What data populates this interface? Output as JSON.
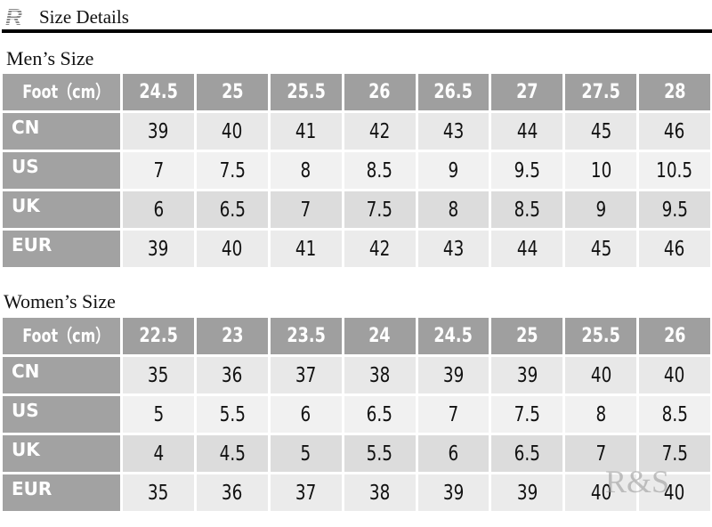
{
  "header": {
    "title": "Size Details",
    "logo_text": "R"
  },
  "men": {
    "title": "Men’s Size",
    "header_label": "Foot（cm）",
    "foot": [
      "24.5",
      "25",
      "25.5",
      "26",
      "26.5",
      "27",
      "27.5",
      "28"
    ],
    "rows": [
      {
        "label": "CN",
        "values": [
          "39",
          "40",
          "41",
          "42",
          "43",
          "44",
          "45",
          "46"
        ]
      },
      {
        "label": "US",
        "values": [
          "7",
          "7.5",
          "8",
          "8.5",
          "9",
          "9.5",
          "10",
          "10.5"
        ]
      },
      {
        "label": "UK",
        "values": [
          "6",
          "6.5",
          "7",
          "7.5",
          "8",
          "8.5",
          "9",
          "9.5"
        ]
      },
      {
        "label": "EUR",
        "values": [
          "39",
          "40",
          "41",
          "42",
          "43",
          "44",
          "45",
          "46"
        ]
      }
    ]
  },
  "women": {
    "title": "Women’s Size",
    "header_label": "Foot（cm）",
    "foot": [
      "22.5",
      "23",
      "23.5",
      "24",
      "24.5",
      "25",
      "25.5",
      "26"
    ],
    "rows": [
      {
        "label": "CN",
        "values": [
          "35",
          "36",
          "37",
          "38",
          "39",
          "39",
          "40",
          "40"
        ]
      },
      {
        "label": "US",
        "values": [
          "5",
          "5.5",
          "6",
          "6.5",
          "7",
          "7.5",
          "8",
          "8.5"
        ]
      },
      {
        "label": "UK",
        "values": [
          "4",
          "4.5",
          "5",
          "5.5",
          "6",
          "6.5",
          "7",
          "7.5"
        ]
      },
      {
        "label": "EUR",
        "values": [
          "35",
          "36",
          "37",
          "38",
          "39",
          "39",
          "40",
          "40"
        ]
      }
    ]
  },
  "watermark": "R&S"
}
